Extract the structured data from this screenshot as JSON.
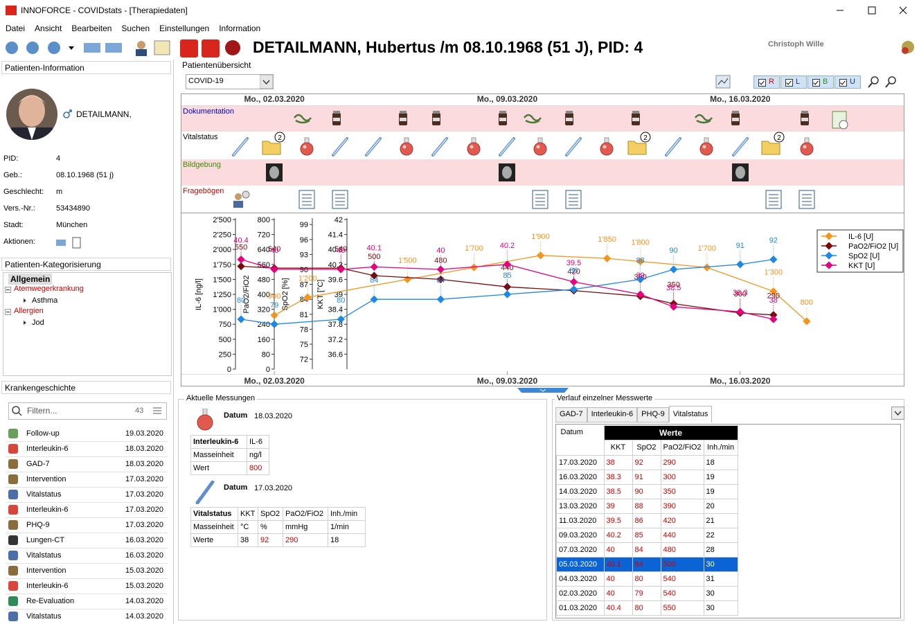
{
  "window": {
    "title": "INNOFORCE - COVIDstats - [Therapiedaten]"
  },
  "menu": [
    "Datei",
    "Ansicht",
    "Bearbeiten",
    "Suchen",
    "Einstellungen",
    "Information"
  ],
  "header": {
    "patient": "DETAILMANN, Hubertus /m 08.10.1968 (51 J), PID: 4",
    "user": "Christoph Wille"
  },
  "patient_info": {
    "title": "Patienten-Information",
    "name": "DETAILMANN,",
    "fields": [
      {
        "label": "PID:",
        "value": "4"
      },
      {
        "label": "Geb.:",
        "value": "08.10.1968 (51 j)"
      },
      {
        "label": "Geschlecht:",
        "value": "m"
      },
      {
        "label": "Vers.-Nr.:",
        "value": "53434890"
      },
      {
        "label": "Stadt:",
        "value": "München"
      },
      {
        "label": "Aktionen:"
      }
    ]
  },
  "categorization": {
    "title": "Patienten-Kategorisierung",
    "tab": "Allgemein",
    "groups": [
      {
        "name": "Atemwegerkrankung",
        "items": [
          "Asthma"
        ]
      },
      {
        "name": "Allergien",
        "items": [
          "Jod"
        ]
      }
    ]
  },
  "history": {
    "title": "Krankengeschichte",
    "filter_placeholder": "Filtern...",
    "count": "43",
    "entries": [
      {
        "name": "Follow-up",
        "date": "19.03.2020"
      },
      {
        "name": "Interleukin-6",
        "date": "18.03.2020"
      },
      {
        "name": "GAD-7",
        "date": "18.03.2020"
      },
      {
        "name": "Intervention",
        "date": "17.03.2020"
      },
      {
        "name": "Vitalstatus",
        "date": "17.03.2020"
      },
      {
        "name": "Interleukin-6",
        "date": "17.03.2020"
      },
      {
        "name": "PHQ-9",
        "date": "17.03.2020"
      },
      {
        "name": "Lungen-CT",
        "date": "16.03.2020"
      },
      {
        "name": "Vitalstatus",
        "date": "16.03.2020"
      },
      {
        "name": "Intervention",
        "date": "15.03.2020"
      },
      {
        "name": "Interleukin-6",
        "date": "15.03.2020"
      },
      {
        "name": "Re-Evaluation",
        "date": "14.03.2020"
      },
      {
        "name": "Vitalstatus",
        "date": "14.03.2020"
      }
    ]
  },
  "overview": {
    "title": "Patientenübersicht",
    "selection": "COVID-19",
    "filters": [
      "R",
      "L",
      "B",
      "U"
    ],
    "rows": [
      "Dokumentation",
      "Vitalstatus",
      "Bildgebung",
      "Fragebögen"
    ],
    "badges": [
      "2",
      "2",
      "2"
    ]
  },
  "chart_data": {
    "type": "line",
    "legend": "upper right",
    "xlim": [
      "28.02.2020",
      "21.03.2020"
    ],
    "xticks": [
      {
        "value": "02.03.2020",
        "label": "Mo., 02.03.2020"
      },
      {
        "value": "09.03.2020",
        "label": "Mo., 09.03.2020"
      },
      {
        "value": "16.03.2020",
        "label": "Mo., 16.03.2020"
      }
    ],
    "ylabel": "IL-6 [ng/l]",
    "ylim": [
      0,
      2500
    ],
    "yticks": [
      0,
      250,
      500,
      750,
      {
        "value": 1000,
        "label": "1'000"
      },
      {
        "value": 1250,
        "label": "1'250"
      },
      {
        "value": 1500,
        "label": "1'500"
      },
      {
        "value": 1750,
        "label": "1'750"
      },
      {
        "value": 2000,
        "label": "2'000"
      },
      {
        "value": 2250,
        "label": "2'250"
      },
      {
        "value": 2500,
        "label": "2'500"
      }
    ],
    "y2label": "PaO2/FiO2",
    "y2lim": [
      0,
      800
    ],
    "y2ticks": [
      0,
      80,
      160,
      240,
      320,
      400,
      480,
      560,
      640,
      720,
      800
    ],
    "y3label": "SpO2 [%]",
    "y3lim": [
      70,
      100
    ],
    "y3ticks": [
      72,
      75,
      78,
      81,
      84,
      87,
      90,
      93,
      96,
      99
    ],
    "y4label": "KKT [°C]",
    "y4lim": [
      36,
      42
    ],
    "y4ticks": [
      36.6,
      37.2,
      37.8,
      38.4,
      39,
      39.6,
      40.2,
      40.8,
      41.4,
      42
    ],
    "series": [
      {
        "name": "IL-6 [U]",
        "color": "#f7941d",
        "axis": "y",
        "x": [
          "02.03.2020",
          "03.03.2020",
          "06.03.2020",
          "08.03.2020",
          "10.03.2020",
          "12.03.2020",
          "13.03.2020",
          "15.03.2020",
          "17.03.2020",
          "18.03.2020"
        ],
        "values": [
          900,
          1200,
          1500,
          1700,
          1900,
          1850,
          1800,
          1700,
          1300,
          800
        ],
        "value_labels": [
          "900",
          "1'200",
          "1'500",
          "1'700",
          "1'900",
          "1'850",
          "1'800",
          "1'700",
          "1'300",
          "800"
        ]
      },
      {
        "name": "PaO2/FiO2 [U]",
        "color": "#7a0a0a",
        "axis": "y2",
        "x": [
          "01.03.2020",
          "02.03.2020",
          "04.03.2020",
          "05.03.2020",
          "07.03.2020",
          "09.03.2020",
          "11.03.2020",
          "13.03.2020",
          "14.03.2020",
          "16.03.2020",
          "17.03.2020"
        ],
        "values": [
          550,
          540,
          540,
          500,
          480,
          440,
          420,
          390,
          350,
          300,
          290
        ]
      },
      {
        "name": "SpO2 [U]",
        "color": "#1e88e5",
        "axis": "y3",
        "x": [
          "01.03.2020",
          "02.03.2020",
          "04.03.2020",
          "05.03.2020",
          "07.03.2020",
          "09.03.2020",
          "11.03.2020",
          "13.03.2020",
          "14.03.2020",
          "16.03.2020",
          "17.03.2020"
        ],
        "values": [
          80,
          79,
          80,
          84,
          84,
          85,
          86,
          88,
          90,
          91,
          92
        ]
      },
      {
        "name": "KKT [U]",
        "color": "#e6007e",
        "axis": "y4",
        "x": [
          "01.03.2020",
          "02.03.2020",
          "04.03.2020",
          "05.03.2020",
          "07.03.2020",
          "09.03.2020",
          "11.03.2020",
          "13.03.2020",
          "14.03.2020",
          "16.03.2020",
          "17.03.2020"
        ],
        "values": [
          40.4,
          40,
          40,
          40.1,
          40,
          40.2,
          39.5,
          39,
          38.5,
          38.3,
          38
        ]
      }
    ]
  },
  "current": {
    "title": "Aktuelle Messungen",
    "date_label": "Datum",
    "blocks": [
      {
        "date": "18.03.2020",
        "rows": [
          [
            "Interleukin-6",
            "IL-6"
          ],
          [
            "Masseinheit",
            "ng/l"
          ],
          [
            "Wert",
            "800"
          ]
        ]
      },
      {
        "date": "17.03.2020",
        "rows": [
          [
            "Vitalstatus",
            "KKT",
            "SpO2",
            "PaO2/FiO2",
            "Inh./min"
          ],
          [
            "Masseinheit",
            "°C",
            "%",
            "mmHg",
            "1/min"
          ],
          [
            "Werte",
            "38",
            "92",
            "290",
            "18"
          ]
        ]
      }
    ]
  },
  "course": {
    "title": "Verlauf einzelner Messwerte",
    "tabs": [
      "GAD-7",
      "Interleukin-6",
      "PHQ-9",
      "Vitalstatus"
    ],
    "active_tab": 3,
    "date_header": "Datum",
    "group_header": "Werte",
    "columns": [
      "KKT",
      "SpO2",
      "PaO2/FiO2",
      "Inh./min"
    ],
    "selected_row": 7,
    "rows": [
      [
        "17.03.2020",
        "38",
        "92",
        "290",
        "18"
      ],
      [
        "16.03.2020",
        "38.3",
        "91",
        "300",
        "19"
      ],
      [
        "14.03.2020",
        "38.5",
        "90",
        "350",
        "19"
      ],
      [
        "13.03.2020",
        "39",
        "88",
        "390",
        "20"
      ],
      [
        "11.03.2020",
        "39.5",
        "86",
        "420",
        "21"
      ],
      [
        "09.03.2020",
        "40.2",
        "85",
        "440",
        "22"
      ],
      [
        "07.03.2020",
        "40",
        "84",
        "480",
        "28"
      ],
      [
        "05.03.2020",
        "40.1",
        "84",
        "500",
        "30"
      ],
      [
        "04.03.2020",
        "40",
        "80",
        "540",
        "31"
      ],
      [
        "02.03.2020",
        "40",
        "79",
        "540",
        "30"
      ],
      [
        "01.03.2020",
        "40.4",
        "80",
        "550",
        "30"
      ]
    ]
  }
}
